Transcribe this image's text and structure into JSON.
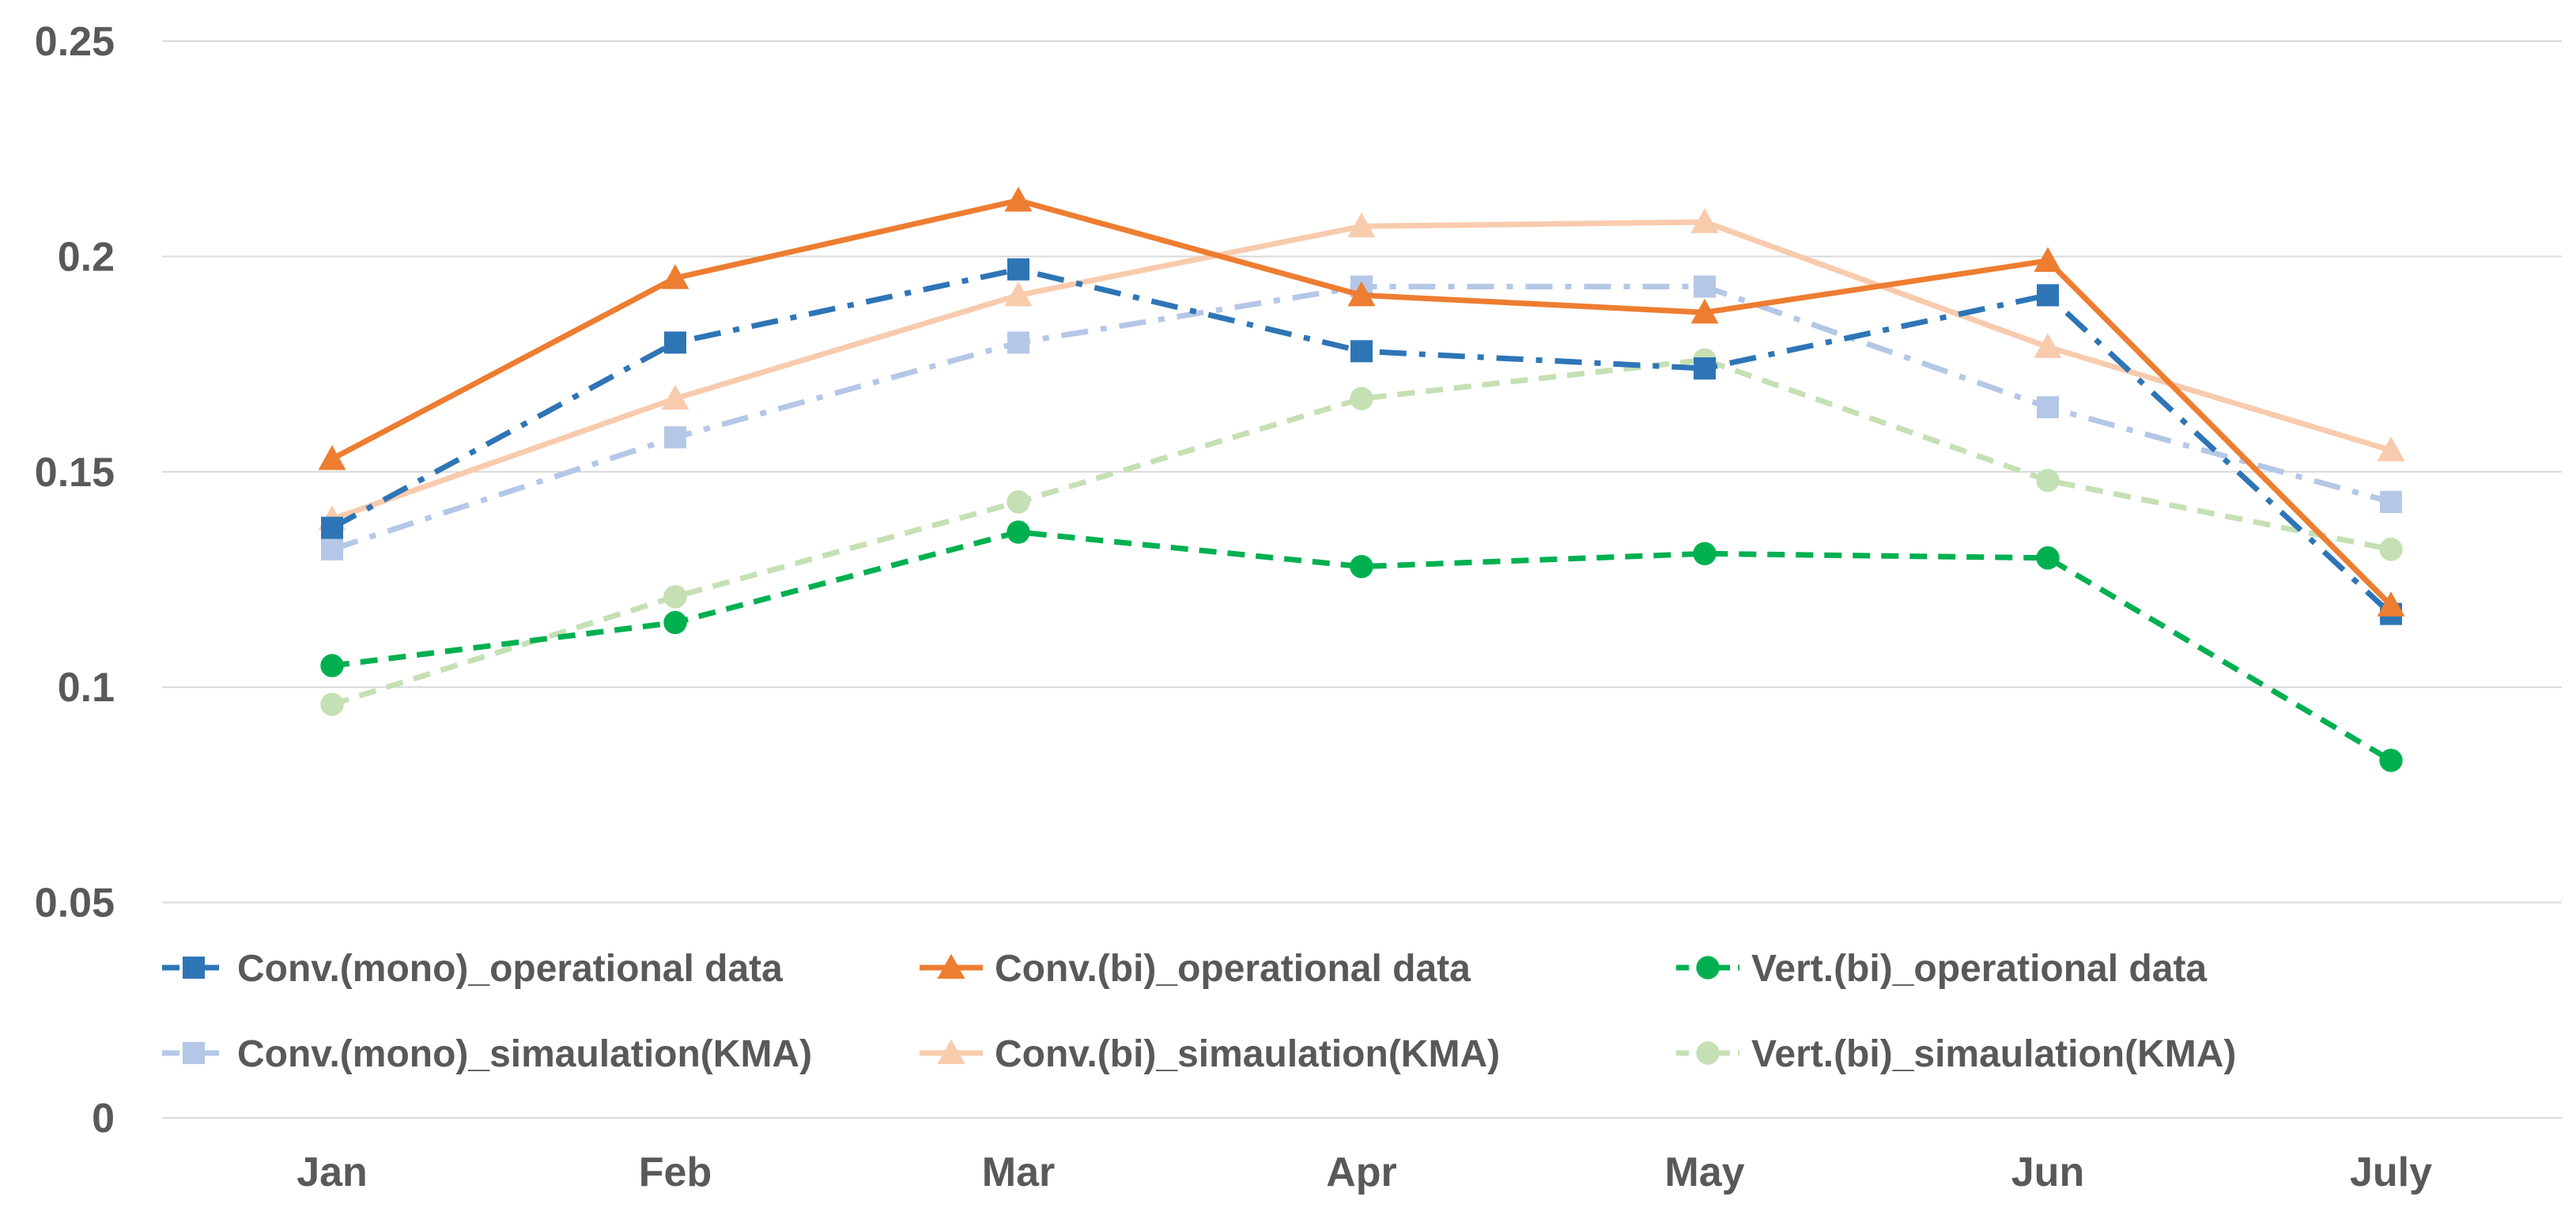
{
  "chart_data": {
    "type": "line",
    "title": "",
    "xlabel": "",
    "ylabel": "",
    "categories": [
      "Jan",
      "Feb",
      "Mar",
      "Apr",
      "May",
      "Jun",
      "July"
    ],
    "ylim": [
      0,
      0.25
    ],
    "yticks": [
      0,
      0.05,
      0.1,
      0.15,
      0.2,
      0.25
    ],
    "ytick_labels": [
      "0",
      "0.05",
      "0.1",
      "0.15",
      "0.2",
      "0.25"
    ],
    "grid": true,
    "legend_position": "bottom-inside",
    "series": [
      {
        "name": "Conv.(mono)_operational data",
        "values": [
          0.137,
          0.18,
          0.197,
          0.178,
          0.174,
          0.191,
          0.117
        ],
        "color": "#2E75B6",
        "marker": "square",
        "dash": "dash-dot"
      },
      {
        "name": "Conv.(bi)_operational data",
        "values": [
          0.153,
          0.195,
          0.213,
          0.191,
          0.187,
          0.199,
          0.119
        ],
        "color": "#ED7D31",
        "marker": "triangle",
        "dash": "solid"
      },
      {
        "name": "Vert.(bi)_operational data",
        "values": [
          0.105,
          0.115,
          0.136,
          0.128,
          0.131,
          0.13,
          0.083
        ],
        "color": "#00B050",
        "marker": "circle",
        "dash": "dashed"
      },
      {
        "name": "Conv.(mono)_simaulation(KMA)",
        "values": [
          0.132,
          0.158,
          0.18,
          0.193,
          0.193,
          0.165,
          0.143
        ],
        "color": "#B4C7E7",
        "marker": "square",
        "dash": "dash-dot"
      },
      {
        "name": "Conv.(bi)_simaulation(KMA)",
        "values": [
          0.139,
          0.167,
          0.191,
          0.207,
          0.208,
          0.179,
          0.155
        ],
        "color": "#F8CBAD",
        "marker": "triangle",
        "dash": "solid"
      },
      {
        "name": "Vert.(bi)_simaulation(KMA)",
        "values": [
          0.096,
          0.121,
          0.143,
          0.167,
          0.176,
          0.148,
          0.132
        ],
        "color": "#C5E0B4",
        "marker": "circle",
        "dash": "dashed"
      }
    ]
  }
}
